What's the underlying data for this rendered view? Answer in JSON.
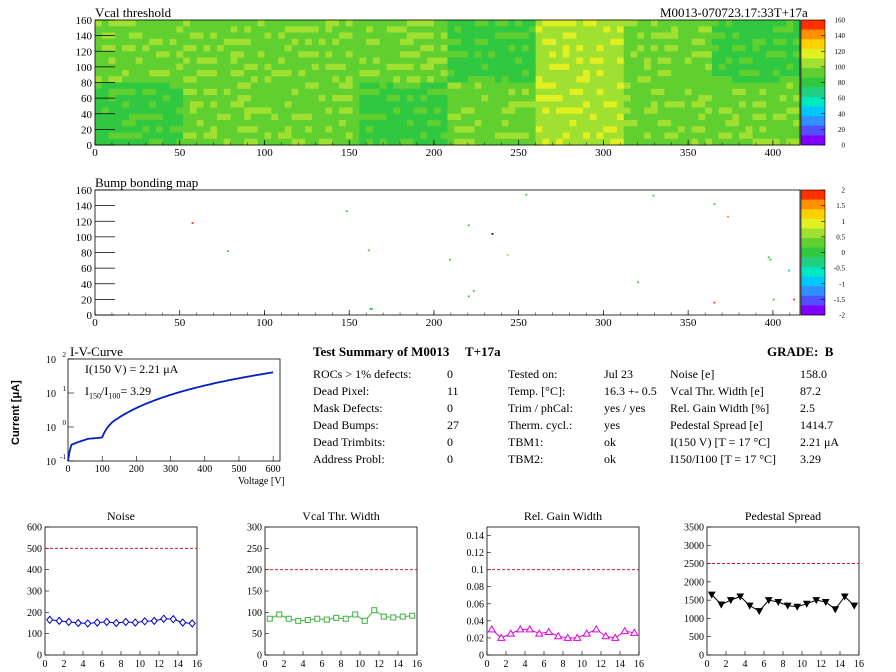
{
  "header": {
    "module_tag": "M0013-070723.17:33T+17a"
  },
  "vcal_map": {
    "title": "Vcal threshold",
    "xticks": [
      "0",
      "50",
      "100",
      "150",
      "200",
      "250",
      "300",
      "350",
      "400"
    ],
    "yticks": [
      "0",
      "20",
      "40",
      "60",
      "80",
      "100",
      "120",
      "140",
      "160"
    ],
    "palette": [
      "#8000ff",
      "#5050ff",
      "#3090ff",
      "#00c8ff",
      "#00e8c0",
      "#20d080",
      "#30c840",
      "#60d030",
      "#a0e030",
      "#e0f020",
      "#ffd000",
      "#ff9000",
      "#ff3000"
    ],
    "scale_labels": [
      "0",
      "20",
      "40",
      "60",
      "80",
      "100",
      "120",
      "140",
      "160"
    ],
    "tile_levels": [
      8,
      8,
      8,
      8,
      7,
      9,
      8,
      7,
      7,
      8,
      8,
      7,
      8,
      9,
      8,
      8
    ]
  },
  "bump_map": {
    "title": "Bump bonding map",
    "xticks": [
      "0",
      "50",
      "100",
      "150",
      "200",
      "250",
      "300",
      "350",
      "400"
    ],
    "yticks": [
      "0",
      "20",
      "40",
      "60",
      "80",
      "100",
      "120",
      "140",
      "160"
    ],
    "palette": [
      "#8000ff",
      "#5050ff",
      "#3090ff",
      "#00c8ff",
      "#00e8c0",
      "#20d080",
      "#30c840",
      "#60d030",
      "#a0e030",
      "#e0f020",
      "#ffd000",
      "#ff9000",
      "#ff3000"
    ],
    "scale_labels": [
      "-2",
      "-1.5",
      "-1",
      "-0.5",
      "0",
      "0.5",
      "1",
      "1.5",
      "2"
    ]
  },
  "iv_curve": {
    "title": "I-V-Curve",
    "xlabel": "Voltage [V]",
    "ylabel": "Current [μA]",
    "annot1": "I(150 V) = 2.21 μA",
    "annot2_main": "I",
    "annot2_sub1": "150",
    "annot2_slash": "/I",
    "annot2_sub2": "100",
    "annot2_val": "= 3.29",
    "xticks": [
      "0",
      "100",
      "200",
      "300",
      "400",
      "500",
      "600"
    ],
    "ytick_base": [
      "10",
      "10",
      "10",
      "10"
    ],
    "ytick_exp": [
      "-1",
      "0",
      "1",
      "2"
    ],
    "color": "#0020c0"
  },
  "summary": {
    "title": "Test Summary of M0013",
    "tag": "T+17a",
    "grade": "GRADE:  B",
    "col1": [
      {
        "label": "ROCs > 1% defects:",
        "value": "0"
      },
      {
        "label": "Dead Pixel:",
        "value": "11"
      },
      {
        "label": "Mask Defects:",
        "value": "0"
      },
      {
        "label": "Dead Bumps:",
        "value": "27"
      },
      {
        "label": "Dead Trimbits:",
        "value": "0"
      },
      {
        "label": "Address Probl:",
        "value": "0"
      }
    ],
    "col2": [
      {
        "label": "Tested on:",
        "value": "Jul 23"
      },
      {
        "label": "Temp. [°C]:",
        "value": "16.3 +- 0.5"
      },
      {
        "label": "Trim / phCal:",
        "value": "yes / yes"
      },
      {
        "label": "Therm. cycl.:",
        "value": "yes"
      },
      {
        "label": "TBM1:",
        "value": "ok"
      },
      {
        "label": "TBM2:",
        "value": "ok"
      }
    ],
    "col3": [
      {
        "label": "Noise [e]",
        "value": "158.0"
      },
      {
        "label": "Vcal Thr. Width [e]",
        "value": "87.2"
      },
      {
        "label": "Rel. Gain Width [%]",
        "value": "2.5"
      },
      {
        "label": "Pedestal Spread [e]",
        "value": "1414.7"
      },
      {
        "label": "I(150 V) [T = 17 °C]",
        "value": "2.21 μA"
      },
      {
        "label": "I150/I100  [T = 17 °C]",
        "value": "3.29"
      }
    ]
  },
  "chart_data": [
    {
      "type": "line",
      "title": "Noise",
      "x": [
        0,
        1,
        2,
        3,
        4,
        5,
        6,
        7,
        8,
        9,
        10,
        11,
        12,
        13,
        14,
        15
      ],
      "values": [
        165,
        160,
        155,
        150,
        148,
        152,
        155,
        150,
        155,
        152,
        158,
        160,
        170,
        168,
        152,
        148
      ],
      "ylim": [
        0,
        600
      ],
      "yticks": [
        "0",
        "100",
        "200",
        "300",
        "400",
        "500",
        "600"
      ],
      "xticks": [
        "0",
        "2",
        "4",
        "6",
        "8",
        "10",
        "12",
        "14",
        "16"
      ],
      "limit": 500,
      "color": "#0000c0",
      "marker": "diamond"
    },
    {
      "type": "line",
      "title": "Vcal Thr. Width",
      "x": [
        0,
        1,
        2,
        3,
        4,
        5,
        6,
        7,
        8,
        9,
        10,
        11,
        12,
        13,
        14,
        15
      ],
      "values": [
        85,
        95,
        85,
        80,
        82,
        85,
        83,
        87,
        85,
        95,
        80,
        105,
        90,
        88,
        90,
        92
      ],
      "ylim": [
        0,
        300
      ],
      "yticks": [
        "0",
        "50",
        "100",
        "150",
        "200",
        "250",
        "300"
      ],
      "xticks": [
        "0",
        "2",
        "4",
        "6",
        "8",
        "10",
        "12",
        "14",
        "16"
      ],
      "limit": 200,
      "color": "#40b040",
      "marker": "square"
    },
    {
      "type": "line",
      "title": "Rel. Gain Width",
      "x": [
        0,
        1,
        2,
        3,
        4,
        5,
        6,
        7,
        8,
        9,
        10,
        11,
        12,
        13,
        14,
        15
      ],
      "values": [
        0.03,
        0.02,
        0.025,
        0.03,
        0.03,
        0.025,
        0.027,
        0.022,
        0.02,
        0.02,
        0.025,
        0.03,
        0.022,
        0.02,
        0.028,
        0.026
      ],
      "ylim": [
        0,
        0.15
      ],
      "yticks": [
        "0",
        "0.02",
        "0.04",
        "0.06",
        "0.08",
        "0.1",
        "0.12",
        "0.14"
      ],
      "xticks": [
        "0",
        "2",
        "4",
        "6",
        "8",
        "10",
        "12",
        "14",
        "16"
      ],
      "limit": 0.1,
      "color": "#e000e0",
      "marker": "triangle"
    },
    {
      "type": "line",
      "title": "Pedestal Spread",
      "x": [
        0,
        1,
        2,
        3,
        4,
        5,
        6,
        7,
        8,
        9,
        10,
        11,
        12,
        13,
        14,
        15
      ],
      "values": [
        1650,
        1380,
        1500,
        1600,
        1350,
        1200,
        1500,
        1450,
        1350,
        1320,
        1400,
        1500,
        1450,
        1250,
        1600,
        1350
      ],
      "ylim": [
        0,
        3500
      ],
      "yticks": [
        "0",
        "500",
        "1000",
        "1500",
        "2000",
        "2500",
        "3000",
        "3500"
      ],
      "xticks": [
        "0",
        "2",
        "4",
        "6",
        "8",
        "10",
        "12",
        "14",
        "16"
      ],
      "limit": 2500,
      "color": "#000000",
      "marker": "tri-down"
    }
  ]
}
